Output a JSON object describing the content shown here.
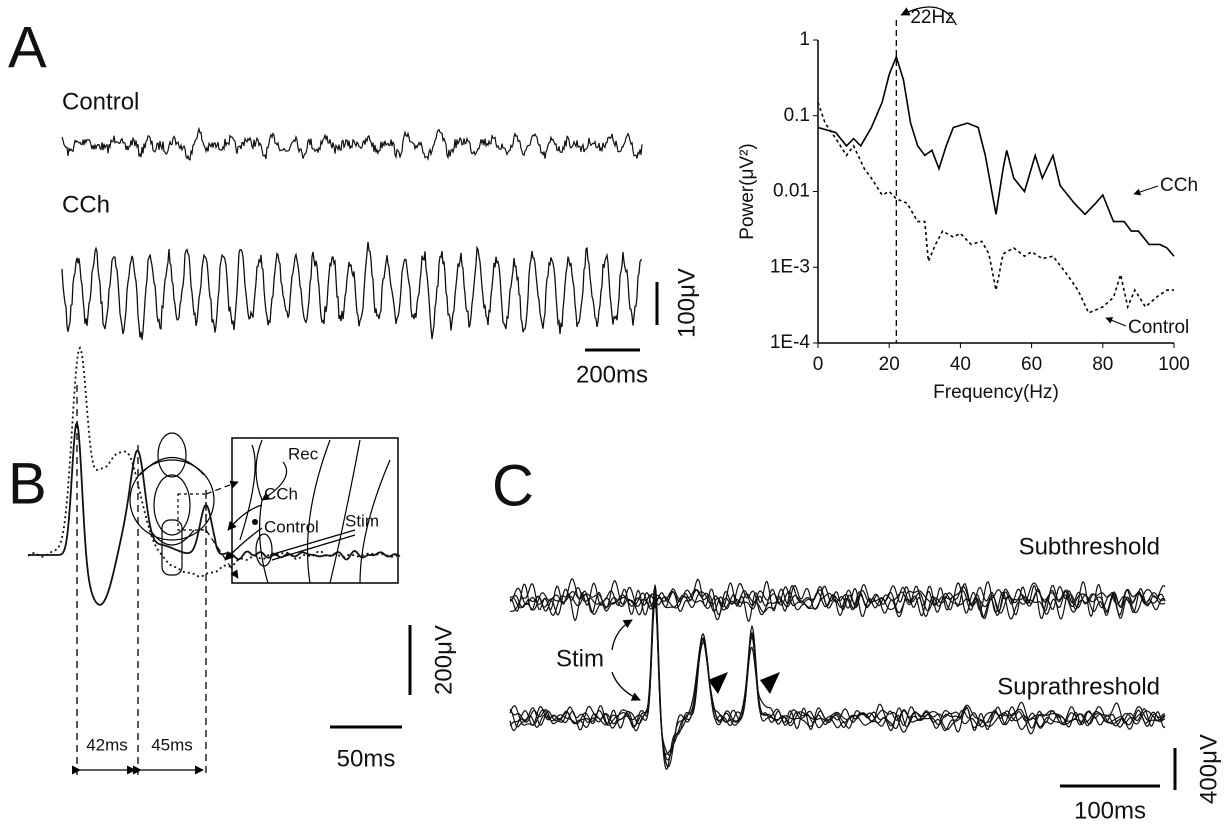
{
  "panels": {
    "A": {
      "label": "A",
      "trace_labels": [
        "Control",
        "CCh"
      ],
      "scale_voltage": "100μV",
      "scale_time": "200ms"
    },
    "B": {
      "label": "B",
      "inset_labels": [
        "Rec",
        "Stim"
      ],
      "trace_labels": [
        "CCh",
        "Control"
      ],
      "scale_voltage": "200μV",
      "intervals": [
        "42ms",
        "45ms"
      ],
      "scale_time": "50ms"
    },
    "C": {
      "label": "C",
      "trace_labels": [
        "Subthreshold",
        "Suprathreshold"
      ],
      "stim_label": "Stim",
      "scale_voltage": "400μV",
      "scale_time": "100ms"
    }
  },
  "chart_data": {
    "type": "line",
    "xlabel": "Frequency(Hz)",
    "ylabel": "Power(μV²)",
    "log_y": true,
    "xlim": [
      0,
      100
    ],
    "xticks": [
      0,
      20,
      40,
      60,
      80,
      100
    ],
    "ylim": [
      0.0001,
      1
    ],
    "yticks": [
      {
        "value": 0.0001,
        "label": "1E-4"
      },
      {
        "value": 0.001,
        "label": "1E-3"
      },
      0.01,
      0.1,
      1
    ],
    "annotation": {
      "x": 22,
      "label": "22Hz"
    },
    "series": [
      {
        "name": "CCh",
        "color": "#000000",
        "dash": "solid",
        "x": [
          0,
          5,
          8,
          10,
          12,
          15,
          18,
          20,
          22,
          24,
          26,
          28,
          30,
          32,
          34,
          36,
          38,
          42,
          45,
          47,
          50,
          52,
          53,
          55,
          58,
          61,
          63,
          66,
          68,
          72,
          75,
          78,
          80,
          83,
          86,
          88,
          90,
          93,
          96,
          98,
          100
        ],
        "values": [
          0.07,
          0.06,
          0.04,
          0.05,
          0.04,
          0.07,
          0.15,
          0.35,
          0.6,
          0.3,
          0.08,
          0.04,
          0.03,
          0.035,
          0.02,
          0.04,
          0.07,
          0.08,
          0.07,
          0.03,
          0.005,
          0.02,
          0.035,
          0.015,
          0.01,
          0.03,
          0.015,
          0.03,
          0.012,
          0.007,
          0.005,
          0.007,
          0.009,
          0.004,
          0.004,
          0.003,
          0.003,
          0.002,
          0.002,
          0.0018,
          0.0014
        ]
      },
      {
        "name": "Control",
        "color": "#000000",
        "dash": "dotted",
        "x": [
          0,
          2,
          5,
          8,
          10,
          13,
          15,
          18,
          20,
          22,
          25,
          28,
          30,
          31,
          33,
          35,
          38,
          40,
          43,
          46,
          48,
          50,
          52,
          55,
          58,
          60,
          63,
          66,
          70,
          73,
          76,
          80,
          83,
          85,
          87,
          89,
          92,
          95,
          98,
          100
        ],
        "values": [
          0.15,
          0.08,
          0.05,
          0.03,
          0.04,
          0.02,
          0.015,
          0.009,
          0.01,
          0.008,
          0.007,
          0.004,
          0.004,
          0.0012,
          0.002,
          0.003,
          0.0025,
          0.0028,
          0.002,
          0.0022,
          0.0015,
          0.0005,
          0.0015,
          0.0018,
          0.0014,
          0.0016,
          0.0013,
          0.0014,
          0.0008,
          0.0005,
          0.00025,
          0.0003,
          0.0004,
          0.0008,
          0.0003,
          0.0005,
          0.0003,
          0.0004,
          0.0005,
          0.0005
        ]
      }
    ]
  }
}
